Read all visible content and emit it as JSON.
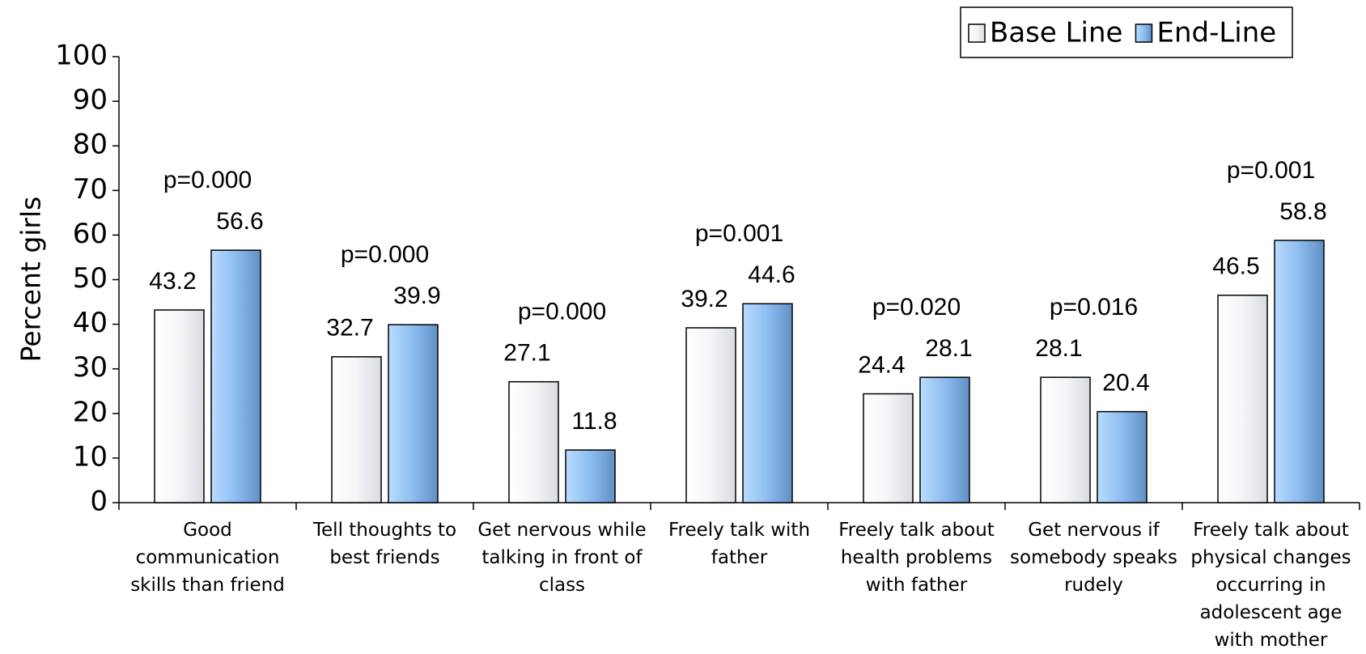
{
  "chart_data": {
    "type": "bar",
    "y_label": "Percent girls",
    "categories": [
      "Good communication skills than friend",
      "Tell thoughts to best friends",
      "Get nervous while talking in front of class",
      "Freely talk with father",
      "Freely talk about health problems with father",
      "Get nervous if somebody speaks rudely",
      "Freely talk about physical changes occurring in adolescent age with mother"
    ],
    "series": [
      {
        "name": "Base Line",
        "color": "#d8dce2",
        "values": [
          43.2,
          32.7,
          27.1,
          39.2,
          24.4,
          28.1,
          46.5
        ]
      },
      {
        "name": "End-Line",
        "color": "#8dbdf0",
        "values": [
          56.6,
          39.9,
          11.8,
          44.6,
          28.1,
          20.4,
          58.8
        ]
      }
    ],
    "annotations": [
      "p=0.000",
      "p=0.000",
      "p=0.000",
      "p=0.001",
      "p=0.020",
      "p=0.016",
      "p=0.001"
    ],
    "ylim": [
      0,
      100
    ],
    "yticks": [
      0,
      10,
      20,
      30,
      40,
      50,
      60,
      70,
      80,
      90,
      100
    ],
    "grid": false,
    "legend": "top-right"
  }
}
